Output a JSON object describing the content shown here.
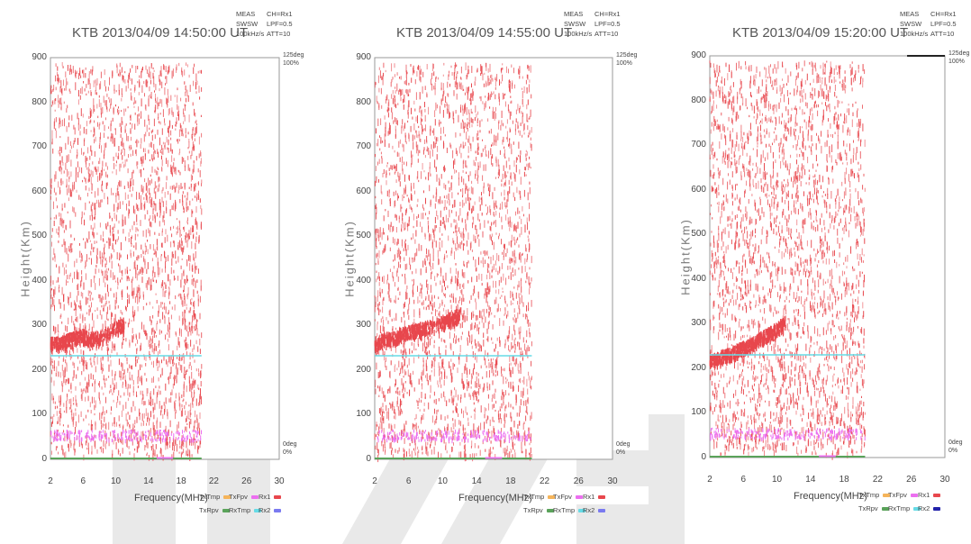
{
  "colors": {
    "echo": "#e8474d",
    "cyan_line": "#66dbe6",
    "magenta": "#ec6ff0",
    "green": "#5aa35a",
    "orange": "#f5b45a",
    "watermark": "#e9e9e9"
  },
  "chart_data": [
    {
      "type": "scatter",
      "title": "KTB 2013/04/09 14:50:00 UT",
      "meta": [
        "MEAS\nSWSW\n100kHz/s",
        "CH=Rx1\nLPF=0.5\nATT=10"
      ],
      "xlabel": "Frequency(MHz)",
      "ylabel": "Height(Km)",
      "xlim": [
        2,
        30
      ],
      "ylim": [
        0,
        900
      ],
      "x_ticks": [
        "2",
        "6",
        "10",
        "14",
        "18",
        "22",
        "26",
        "30"
      ],
      "y_ticks": [
        "0",
        "100",
        "200",
        "300",
        "400",
        "500",
        "600",
        "700",
        "800",
        "900"
      ],
      "right_axis_top": [
        "125deg",
        "100%"
      ],
      "right_axis_bottom": [
        "0deg",
        "0%"
      ],
      "legend": [
        {
          "label": "TxTmp",
          "color": "#f5b45a"
        },
        {
          "label": "TxFpv",
          "color": "#ec6ff0"
        },
        {
          "label": "Rx1",
          "color": "#e8474d"
        },
        {
          "label": "TxRpv",
          "color": "#5aa35a"
        },
        {
          "label": "RxTmp",
          "color": "#66dbe6"
        },
        {
          "label": "Rx2",
          "color": "#7a7af0"
        }
      ],
      "noise_fmax": 20.5,
      "trace": [
        [
          2,
          262
        ],
        [
          3,
          262
        ],
        [
          4,
          268
        ],
        [
          5,
          275
        ],
        [
          6,
          280
        ],
        [
          7,
          272
        ],
        [
          8,
          275
        ],
        [
          10,
          298
        ],
        [
          11,
          305
        ]
      ],
      "cyan_level": 232,
      "cyan_fmax": 20.5,
      "band": [
        [
          2,
          55
        ],
        [
          8,
          48
        ],
        [
          14,
          52
        ],
        [
          20,
          58
        ]
      ],
      "band_color": "#ec6ff0"
    },
    {
      "type": "scatter",
      "title": "KTB 2013/04/09 14:55:00 UT",
      "meta": [
        "MEAS\nSWSW\n100kHz/s",
        "CH=Rx1\nLPF=0.5\nATT=10"
      ],
      "xlabel": "Frequency(MHz)",
      "ylabel": "Height(Km)",
      "xlim": [
        2,
        30
      ],
      "ylim": [
        0,
        900
      ],
      "x_ticks": [
        "2",
        "6",
        "10",
        "14",
        "18",
        "22",
        "26",
        "30"
      ],
      "y_ticks": [
        "0",
        "100",
        "200",
        "300",
        "400",
        "500",
        "600",
        "700",
        "800",
        "900"
      ],
      "right_axis_top": [
        "125deg",
        "100%"
      ],
      "right_axis_bottom": [
        "0deg",
        "0%"
      ],
      "legend": [
        {
          "label": "TxTmp",
          "color": "#f5b45a"
        },
        {
          "label": "TxFpv",
          "color": "#ec6ff0"
        },
        {
          "label": "Rx1",
          "color": "#e8474d"
        },
        {
          "label": "TxRpv",
          "color": "#5aa35a"
        },
        {
          "label": "RxTmp",
          "color": "#66dbe6"
        },
        {
          "label": "Rx2",
          "color": "#7a7af0"
        }
      ],
      "noise_fmax": 20.5,
      "trace": [
        [
          2,
          262
        ],
        [
          3,
          270
        ],
        [
          4,
          275
        ],
        [
          5,
          282
        ],
        [
          6,
          288
        ],
        [
          7,
          292
        ],
        [
          8,
          298
        ],
        [
          10,
          310
        ],
        [
          11,
          318
        ],
        [
          12,
          326
        ]
      ],
      "cyan_level": 232,
      "cyan_fmax": 20.5,
      "band": [
        [
          2,
          52
        ],
        [
          8,
          48
        ],
        [
          14,
          55
        ],
        [
          20,
          58
        ]
      ],
      "band_color": "#ec6ff0"
    },
    {
      "type": "scatter",
      "title": "KTB 2013/04/09 15:20:00 UT",
      "meta": [
        "MEAS\nSWSW\n100kHz/s",
        "CH=Rx1\nLPF=0.5\nATT=10"
      ],
      "xlabel": "Frequency(MHz)",
      "ylabel": "Height(Km)",
      "xlim": [
        2,
        30
      ],
      "ylim": [
        0,
        900
      ],
      "x_ticks": [
        "2",
        "6",
        "10",
        "14",
        "18",
        "22",
        "26",
        "30"
      ],
      "y_ticks": [
        "0",
        "100",
        "200",
        "300",
        "400",
        "500",
        "600",
        "700",
        "800",
        "900"
      ],
      "right_axis_top": [
        "125deg",
        "100%"
      ],
      "right_axis_bottom": [
        "0deg",
        "0%"
      ],
      "legend": [
        {
          "label": "TxTmp",
          "color": "#f5b45a"
        },
        {
          "label": "TxFpv",
          "color": "#ec6ff0"
        },
        {
          "label": "Rx1",
          "color": "#e8474d"
        },
        {
          "label": "TxRpv",
          "color": "#5aa35a"
        },
        {
          "label": "RxTmp",
          "color": "#66dbe6"
        },
        {
          "label": "Rx2",
          "color": "#2222aa"
        }
      ],
      "noise_fmax": 20.5,
      "trace": [
        [
          2,
          218
        ],
        [
          3,
          225
        ],
        [
          4,
          232
        ],
        [
          5,
          240
        ],
        [
          6,
          248
        ],
        [
          7,
          258
        ],
        [
          8,
          268
        ],
        [
          9,
          280
        ],
        [
          10,
          290
        ],
        [
          11,
          305
        ]
      ],
      "cyan_level": 230,
      "cyan_fmax": 20.5,
      "band": [
        [
          2,
          55
        ],
        [
          8,
          52
        ],
        [
          14,
          55
        ],
        [
          20,
          60
        ]
      ],
      "band_color": "#ec6ff0"
    }
  ]
}
